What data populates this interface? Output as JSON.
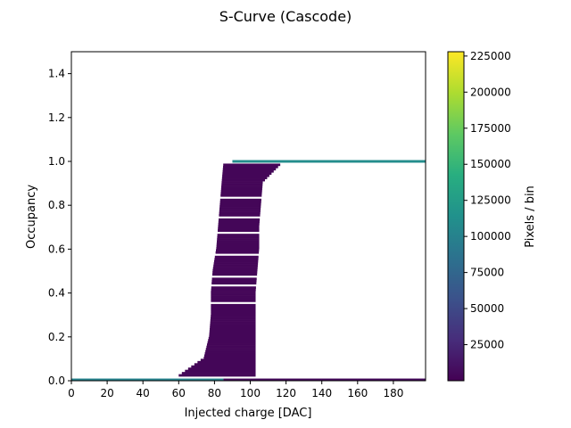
{
  "chart_data": {
    "type": "heatmap",
    "title": "S-Curve (Cascode)",
    "xlabel": "Injected charge [DAC]",
    "ylabel": "Occupancy",
    "xlim": [
      0,
      198
    ],
    "ylim": [
      0,
      1.5
    ],
    "x_ticks": [
      0,
      20,
      40,
      60,
      80,
      100,
      120,
      140,
      160,
      180
    ],
    "y_ticks": [
      0.0,
      0.2,
      0.4,
      0.6,
      0.8,
      1.0,
      1.2,
      1.4
    ],
    "x_tick_labels": [
      "0",
      "20",
      "40",
      "60",
      "80",
      "100",
      "120",
      "140",
      "160",
      "180"
    ],
    "y_tick_labels": [
      "0.0",
      "0.2",
      "0.4",
      "0.6",
      "0.8",
      "1.0",
      "1.2",
      "1.4"
    ],
    "colorbar": {
      "label": "Pixels / bin",
      "colormap": "viridis",
      "range": [
        0,
        228000
      ],
      "ticks": [
        25000,
        50000,
        75000,
        100000,
        125000,
        150000,
        175000,
        200000,
        225000
      ],
      "tick_labels": [
        "25000",
        "50000",
        "75000",
        "100000",
        "125000",
        "150000",
        "175000",
        "200000",
        "225000"
      ]
    },
    "bands": [
      {
        "name": "zero-occupancy baseline",
        "y": 0.0,
        "x_range": [
          0,
          85
        ],
        "count": 100000
      },
      {
        "name": "zero-occupancy baseline",
        "y": 0.0,
        "x_range": [
          85,
          198
        ],
        "count": 5000
      },
      {
        "name": "full-occupancy plateau",
        "y": 1.0,
        "x_range": [
          90,
          198
        ],
        "count": 110000
      }
    ],
    "transition_region": {
      "count": 3000,
      "profile": [
        {
          "y": 0.02,
          "x_range": [
            60,
            103
          ]
        },
        {
          "y": 0.1,
          "x_range": [
            74,
            103
          ]
        },
        {
          "y": 0.2,
          "x_range": [
            77,
            103
          ]
        },
        {
          "y": 0.3,
          "x_range": [
            78,
            103
          ]
        },
        {
          "y": 0.4,
          "x_range": [
            78,
            103
          ]
        },
        {
          "y": 0.5,
          "x_range": [
            79,
            104
          ]
        },
        {
          "y": 0.6,
          "x_range": [
            81,
            105
          ]
        },
        {
          "y": 0.7,
          "x_range": [
            82,
            105
          ]
        },
        {
          "y": 0.8,
          "x_range": [
            83,
            106
          ]
        },
        {
          "y": 0.9,
          "x_range": [
            84,
            107
          ]
        },
        {
          "y": 0.99,
          "x_range": [
            85,
            118
          ]
        }
      ],
      "gap_rows": [
        0.35,
        0.43,
        0.47,
        0.57,
        0.67,
        0.74,
        0.83
      ]
    }
  }
}
